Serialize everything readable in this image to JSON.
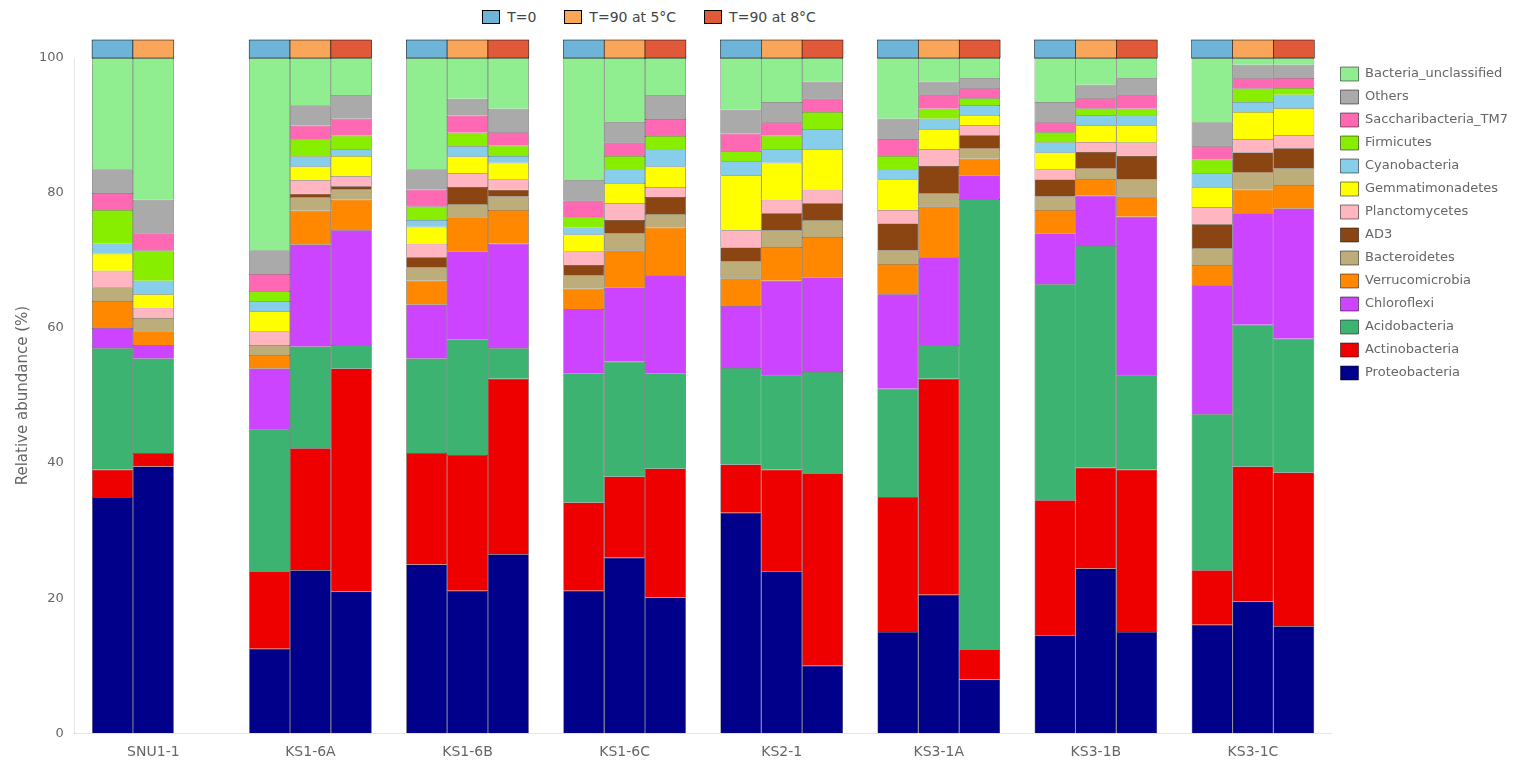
{
  "chart_data": {
    "type": "bar",
    "stacked": true,
    "ylabel": "Relative abundance (%)",
    "ylim": [
      0,
      100
    ],
    "yticks": [
      0,
      20,
      40,
      60,
      80,
      100
    ],
    "grid": false,
    "legend": "right",
    "categories": [
      "SNU1-1",
      "KS1-6A",
      "KS1-6B",
      "KS1-6C",
      "KS2-1",
      "KS3-1A",
      "KS3-1B",
      "KS3-1C"
    ],
    "phyla": [
      {
        "name": "Proteobacteria",
        "color": "#00008B"
      },
      {
        "name": "Actinobacteria",
        "color": "#EE0000"
      },
      {
        "name": "Acidobacteria",
        "color": "#3CB371"
      },
      {
        "name": "Chloroflexi",
        "color": "#CC44FF"
      },
      {
        "name": "Verrucomicrobia",
        "color": "#FF8800"
      },
      {
        "name": "Bacteroidetes",
        "color": "#BCAD7A"
      },
      {
        "name": "AD3",
        "color": "#8B4513"
      },
      {
        "name": "Planctomycetes",
        "color": "#FFB6C1"
      },
      {
        "name": "Gemmatimonadetes",
        "color": "#FFFF00"
      },
      {
        "name": "Cyanobacteria",
        "color": "#87CEEB"
      },
      {
        "name": "Firmicutes",
        "color": "#88EE00"
      },
      {
        "name": "Saccharibacteria_TM7",
        "color": "#FF69B4"
      },
      {
        "name": "Others",
        "color": "#AAAAAA"
      },
      {
        "name": "Bacteria_unclassified",
        "color": "#90EE90"
      }
    ],
    "series": [
      {
        "name": "T=0",
        "color": "#6EB4D9",
        "values": [
          [
            35,
            4,
            18,
            3,
            4,
            2,
            0,
            2.5,
            2.5,
            1.5,
            5,
            2.5,
            3.5,
            16.5
          ],
          [
            12.5,
            11.5,
            21,
            9,
            2,
            1.5,
            0,
            2,
            3,
            1.5,
            1.5,
            2.5,
            3.5,
            28.5
          ],
          [
            25,
            16.5,
            14,
            8,
            3.5,
            2,
            1.5,
            2,
            2.5,
            1,
            2,
            2.5,
            3,
            16.5
          ],
          [
            21.1055,
            13.0653,
            19.0955,
            9.5477,
            3.0151,
            2.0101,
            1.5075,
            2.0101,
            2.5126,
            1.005,
            1.5075,
            2.5126,
            3.0151,
            18.0905
          ],
          [
            32.6531,
            7.1429,
            14.2857,
            9.1837,
            4.0816,
            2.551,
            2.0408,
            2.551,
            8.1633,
            2.0408,
            1.5306,
            2.551,
            3.5714,
            7.6531
          ],
          [
            15,
            20,
            16,
            14,
            4.5,
            2,
            4,
            2,
            4.5,
            1.5,
            2,
            2.5,
            3,
            9
          ],
          [
            14.5,
            20,
            32,
            7.5,
            3.5,
            2,
            2.5,
            1.5,
            2.5,
            1.5,
            1.5,
            1.5,
            3,
            6.5
          ],
          [
            16.0804,
            8.0402,
            23.1156,
            19.0955,
            3.0151,
            2.5126,
            3.5176,
            2.5126,
            3.0151,
            2.0101,
            2.0101,
            2.0101,
            3.5176,
            9.5477
          ]
        ]
      },
      {
        "name": "T=90 at 5°C",
        "color": "#F9A55A",
        "values": [
          [
            39.5,
            2,
            14,
            2,
            2,
            2,
            0,
            1.5,
            2,
            2,
            4.5,
            2.5,
            5,
            21
          ],
          [
            24.1206,
            18.0905,
            15.0754,
            15.0754,
            5.0251,
            2.0101,
            0.5025,
            2.0101,
            2.0101,
            1.5075,
            2.5126,
            2.0101,
            3.0151,
            7.0352
          ],
          [
            21.1055,
            20.1005,
            17.0854,
            13.0653,
            5.0251,
            2.0101,
            2.5126,
            2.0101,
            2.5126,
            1.5075,
            2.0101,
            2.5126,
            2.5126,
            6.0302
          ],
          [
            26,
            12,
            17,
            11,
            5.5,
            2.5,
            2,
            2.5,
            3,
            2,
            2,
            2,
            3,
            9.5
          ],
          [
            24,
            15,
            14,
            14,
            5,
            2.5,
            2.5,
            2,
            5.5,
            2,
            2,
            2,
            3,
            6.5
          ],
          [
            20.5,
            32,
            5,
            13,
            7.5,
            2,
            4,
            2.5,
            3,
            1.5,
            1.5,
            2,
            2,
            3.5
          ],
          [
            24.3781,
            14.9254,
            32.8358,
            7.4627,
            2.4876,
            1.4925,
            2.4876,
            1.4925,
            2.4876,
            1.4925,
            0.995,
            1.4925,
            1.99,
            3.9801
          ],
          [
            19.5,
            20,
            21,
            16.5,
            3.5,
            2.5,
            3,
            2,
            4,
            1.5,
            2,
            1.5,
            2,
            1
          ]
        ]
      },
      {
        "name": "T=90 at 8°C",
        "color": "#E05A3A",
        "values": [
          null,
          [
            21,
            33,
            3.5,
            17,
            4.5,
            1.5,
            0.5,
            1.5,
            3,
            1,
            2,
            2.5,
            3.5,
            5.5
          ],
          [
            26.5,
            26,
            4.5,
            15.5,
            5,
            2,
            1,
            1.5,
            2.5,
            1,
            1.5,
            2,
            3.5,
            7.5
          ],
          [
            20.1005,
            19.0955,
            14.0704,
            14.5729,
            7.0352,
            2.0101,
            2.5126,
            1.5075,
            3.0151,
            2.5126,
            2.0101,
            2.5126,
            3.5176,
            5.5276
          ],
          [
            10,
            28.5,
            15,
            14,
            6,
            2.5,
            2.5,
            2,
            6,
            3,
            2.5,
            2,
            2.5,
            3.5
          ],
          [
            7.9602,
            4.4776,
            66.6667,
            3.4826,
            2.4876,
            1.4925,
            1.99,
            1.4925,
            1.4925,
            1.4925,
            0.995,
            1.4925,
            1.4925,
            2.9851
          ],
          [
            15,
            24,
            14,
            23.5,
            3,
            2.5,
            3.5,
            2,
            2.5,
            1.5,
            1,
            2,
            2.5,
            3
          ],
          [
            15.8416,
            22.7723,
            19.802,
            19.3069,
            3.4653,
            2.4752,
            2.9703,
            1.9802,
            3.9604,
            1.9802,
            0.9901,
            1.4851,
            1.9802,
            0.9901
          ]
        ]
      }
    ]
  }
}
